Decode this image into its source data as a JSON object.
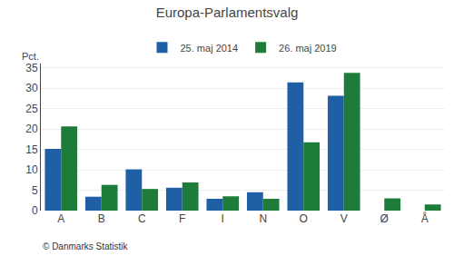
{
  "chart_data": {
    "type": "bar",
    "title": "Europa-Parlamentsvalg",
    "categories": [
      "A",
      "B",
      "C",
      "F",
      "I",
      "N",
      "O",
      "V",
      "Ø",
      "Å"
    ],
    "series": [
      {
        "name": "25. maj 2014",
        "color": "#1F5FA6",
        "values": [
          15.1,
          3.4,
          10.1,
          5.6,
          2.9,
          4.5,
          31.4,
          28.1,
          0.0,
          0.0
        ]
      },
      {
        "name": "26. maj 2019",
        "color": "#1E7C3A",
        "values": [
          20.6,
          6.3,
          5.3,
          6.9,
          3.5,
          2.9,
          16.7,
          33.7,
          3.0,
          1.5
        ]
      }
    ],
    "ylabel": "Pct.",
    "annotations": [
      "© Danmarks Statistik"
    ],
    "ylim": [
      0,
      36
    ],
    "yticks": [
      0,
      5,
      10,
      15,
      20,
      25,
      30,
      35
    ],
    "grid": true,
    "legend": "top"
  }
}
